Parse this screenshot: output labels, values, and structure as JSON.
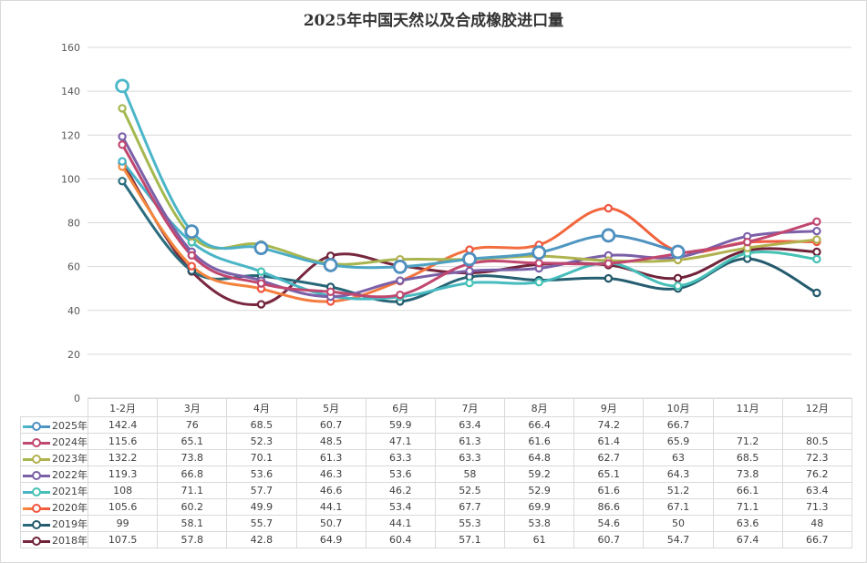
{
  "chart_data": {
    "type": "line",
    "title": "2025年中国天然以及合成橡胶进口量",
    "xlabel": "",
    "ylabel": "",
    "ylim": [
      0,
      160
    ],
    "yticks": [
      0,
      20,
      40,
      60,
      80,
      100,
      120,
      140,
      160
    ],
    "grid": true,
    "legend": "table-bottom",
    "categories": [
      "1-2月",
      "3月",
      "4月",
      "5月",
      "6月",
      "7月",
      "8月",
      "9月",
      "10月",
      "11月",
      "12月"
    ],
    "series": [
      {
        "name": "2025年",
        "color": "#4f8fbf",
        "color2": "#4bb8c8",
        "values": [
          142.4,
          76,
          68.5,
          60.7,
          59.9,
          63.4,
          66.4,
          74.2,
          66.7,
          null,
          null
        ]
      },
      {
        "name": "2024年",
        "color": "#c0476f",
        "color2": "#c0476f",
        "values": [
          115.6,
          65.1,
          52.3,
          48.5,
          47.1,
          61.3,
          61.6,
          61.4,
          65.9,
          71.2,
          80.5
        ]
      },
      {
        "name": "2023年",
        "color": "#b3b04f",
        "color2": "#a3b84f",
        "values": [
          132.2,
          73.8,
          70.1,
          61.3,
          63.3,
          63.3,
          64.8,
          62.7,
          63,
          68.5,
          72.3
        ]
      },
      {
        "name": "2022年",
        "color": "#7b60a8",
        "color2": "#7b60a8",
        "values": [
          119.3,
          66.8,
          53.6,
          46.3,
          53.6,
          58,
          59.2,
          65.1,
          64.3,
          73.8,
          76.2
        ]
      },
      {
        "name": "2021年",
        "color": "#45c2b4",
        "color2": "#4ab3c9",
        "values": [
          108,
          71.1,
          57.7,
          46.6,
          46.2,
          52.5,
          52.9,
          61.6,
          51.2,
          66.1,
          63.4
        ]
      },
      {
        "name": "2020年",
        "color": "#f0553f",
        "color2": "#f58a3d",
        "values": [
          105.6,
          60.2,
          49.9,
          44.1,
          53.4,
          67.7,
          69.9,
          86.6,
          67.1,
          71.1,
          71.3
        ]
      },
      {
        "name": "2019年",
        "color": "#23596b",
        "color2": "#2a6d7e",
        "values": [
          99,
          58.1,
          55.7,
          50.7,
          44.1,
          55.3,
          53.8,
          54.6,
          50,
          63.6,
          48
        ]
      },
      {
        "name": "2018年",
        "color": "#6e2238",
        "color2": "#7a2840",
        "values": [
          107.5,
          57.8,
          42.8,
          64.9,
          60.4,
          57.1,
          61,
          60.7,
          54.7,
          67.4,
          66.7
        ]
      }
    ],
    "table": {
      "rows": [
        [
          "142.4",
          "76",
          "68.5",
          "60.7",
          "59.9",
          "63.4",
          "66.4",
          "74.2",
          "66.7",
          "",
          ""
        ],
        [
          "115.6",
          "65.1",
          "52.3",
          "48.5",
          "47.1",
          "61.3",
          "61.6",
          "61.4",
          "65.9",
          "71.2",
          "80.5"
        ],
        [
          "132.2",
          "73.8",
          "70.1",
          "61.3",
          "63.3",
          "63.3",
          "64.8",
          "62.7",
          "63",
          "68.5",
          "72.3"
        ],
        [
          "119.3",
          "66.8",
          "53.6",
          "46.3",
          "53.6",
          "58",
          "59.2",
          "65.1",
          "64.3",
          "73.8",
          "76.2"
        ],
        [
          "108",
          "71.1",
          "57.7",
          "46.6",
          "46.2",
          "52.5",
          "52.9",
          "61.6",
          "51.2",
          "66.1",
          "63.4"
        ],
        [
          "105.6",
          "60.2",
          "49.9",
          "44.1",
          "53.4",
          "67.7",
          "69.9",
          "86.6",
          "67.1",
          "71.1",
          "71.3"
        ],
        [
          "99",
          "58.1",
          "55.7",
          "50.7",
          "44.1",
          "55.3",
          "53.8",
          "54.6",
          "50",
          "63.6",
          "48"
        ],
        [
          "107.5",
          "57.8",
          "42.8",
          "64.9",
          "60.4",
          "57.1",
          "61",
          "60.7",
          "54.7",
          "67.4",
          "66.7"
        ]
      ]
    }
  }
}
